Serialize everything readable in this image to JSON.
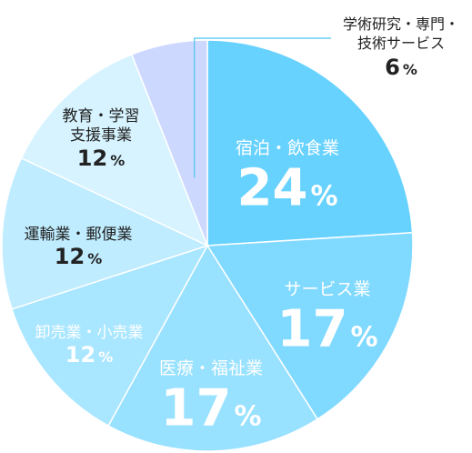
{
  "chart_data": {
    "type": "pie",
    "start_angle_deg": 0,
    "direction": "clockwise",
    "unit": "%",
    "slices": [
      {
        "label_lines": [
          "宿泊・飲食業"
        ],
        "value": 24,
        "color": "#68d2ff",
        "text_color": "#ffffff"
      },
      {
        "label_lines": [
          "サービス業"
        ],
        "value": 17,
        "color": "#80d9ff",
        "text_color": "#ffffff"
      },
      {
        "label_lines": [
          "医療・福祉業"
        ],
        "value": 17,
        "color": "#98e1ff",
        "text_color": "#ffffff"
      },
      {
        "label_lines": [
          "卸売業・小売業"
        ],
        "value": 12,
        "color": "#a9e6ff",
        "text_color": "#ffffff"
      },
      {
        "label_lines": [
          "運輸業・郵便業"
        ],
        "value": 12,
        "color": "#bfecff",
        "text_color": "#222222"
      },
      {
        "label_lines": [
          "教育・学習",
          "支援事業"
        ],
        "value": 12,
        "color": "#d6f3ff",
        "text_color": "#222222"
      },
      {
        "label_lines": [
          "学術研究・専門・",
          "技術サービス"
        ],
        "value": 6,
        "color": "#cdd8ff",
        "text_color": "#222222"
      }
    ],
    "leader_line_color": "#4cc3f0"
  }
}
